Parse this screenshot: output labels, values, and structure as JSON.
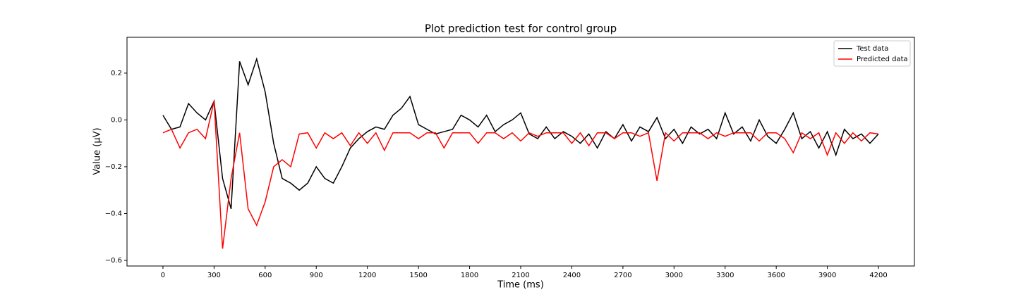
{
  "chart_data": {
    "type": "line",
    "title": "Plot prediction test for control group",
    "x_label": "Time (ms)",
    "y_label": "Value (μV)",
    "x": [
      0,
      50,
      100,
      150,
      200,
      250,
      300,
      350,
      400,
      450,
      500,
      550,
      600,
      650,
      700,
      750,
      800,
      850,
      900,
      950,
      1000,
      1050,
      1100,
      1150,
      1200,
      1250,
      1300,
      1350,
      1400,
      1450,
      1500,
      1550,
      1600,
      1650,
      1700,
      1750,
      1800,
      1850,
      1900,
      1950,
      2000,
      2050,
      2100,
      2150,
      2200,
      2250,
      2300,
      2350,
      2400,
      2450,
      2500,
      2550,
      2600,
      2650,
      2700,
      2750,
      2800,
      2850,
      2900,
      2950,
      3000,
      3050,
      3100,
      3150,
      3200,
      3250,
      3300,
      3350,
      3400,
      3450,
      3500,
      3550,
      3600,
      3650,
      3700,
      3750,
      3800,
      3850,
      3900,
      3950,
      4000,
      4050,
      4100,
      4150,
      4200
    ],
    "series": [
      {
        "name": "Test data",
        "color": "#000000",
        "values": [
          0.02,
          -0.04,
          -0.03,
          0.07,
          0.03,
          0.0,
          0.08,
          -0.25,
          -0.38,
          0.25,
          0.15,
          0.26,
          0.12,
          -0.1,
          -0.25,
          -0.27,
          -0.3,
          -0.27,
          -0.2,
          -0.25,
          -0.27,
          -0.2,
          -0.12,
          -0.08,
          -0.05,
          -0.03,
          -0.04,
          0.02,
          0.05,
          0.1,
          -0.02,
          -0.04,
          -0.06,
          -0.05,
          -0.04,
          0.02,
          0.0,
          -0.03,
          0.02,
          -0.05,
          -0.02,
          0.0,
          0.03,
          -0.06,
          -0.08,
          -0.03,
          -0.08,
          -0.05,
          -0.07,
          -0.1,
          -0.06,
          -0.12,
          -0.05,
          -0.08,
          -0.02,
          -0.09,
          -0.03,
          -0.05,
          0.01,
          -0.08,
          -0.04,
          -0.1,
          -0.03,
          -0.06,
          -0.04,
          -0.08,
          0.03,
          -0.06,
          -0.03,
          -0.09,
          0.0,
          -0.07,
          -0.1,
          -0.04,
          0.03,
          -0.08,
          -0.05,
          -0.12,
          -0.05,
          -0.15,
          -0.04,
          -0.08,
          -0.06,
          -0.1,
          -0.06
        ]
      },
      {
        "name": "Predicted data",
        "color": "#ff0000",
        "values": [
          -0.055,
          -0.04,
          -0.12,
          -0.055,
          -0.04,
          -0.08,
          0.08,
          -0.55,
          -0.25,
          -0.055,
          -0.38,
          -0.45,
          -0.35,
          -0.2,
          -0.17,
          -0.2,
          -0.06,
          -0.055,
          -0.12,
          -0.055,
          -0.08,
          -0.055,
          -0.11,
          -0.055,
          -0.1,
          -0.055,
          -0.13,
          -0.055,
          -0.055,
          -0.055,
          -0.08,
          -0.055,
          -0.055,
          -0.12,
          -0.055,
          -0.055,
          -0.055,
          -0.1,
          -0.055,
          -0.055,
          -0.08,
          -0.055,
          -0.09,
          -0.055,
          -0.07,
          -0.055,
          -0.055,
          -0.055,
          -0.1,
          -0.055,
          -0.11,
          -0.055,
          -0.055,
          -0.08,
          -0.055,
          -0.055,
          -0.07,
          -0.055,
          -0.26,
          -0.055,
          -0.09,
          -0.055,
          -0.055,
          -0.055,
          -0.08,
          -0.055,
          -0.07,
          -0.055,
          -0.055,
          -0.055,
          -0.09,
          -0.055,
          -0.055,
          -0.08,
          -0.14,
          -0.055,
          -0.08,
          -0.055,
          -0.15,
          -0.055,
          -0.1,
          -0.055,
          -0.09,
          -0.055,
          -0.06
        ]
      }
    ],
    "xlim": [
      -211,
      4411
    ],
    "ylim": [
      -0.624,
      0.353
    ],
    "xticks": [
      0,
      300,
      600,
      900,
      1200,
      1500,
      1800,
      2100,
      2400,
      2700,
      3000,
      3300,
      3600,
      3900,
      4200
    ],
    "yticks": [
      {
        "value": -0.6,
        "label": "−0.6"
      },
      {
        "value": -0.4,
        "label": "−0.4"
      },
      {
        "value": -0.2,
        "label": "−0.2"
      },
      {
        "value": 0,
        "label": "0.0"
      },
      0.2
    ],
    "legend": "upper right"
  }
}
